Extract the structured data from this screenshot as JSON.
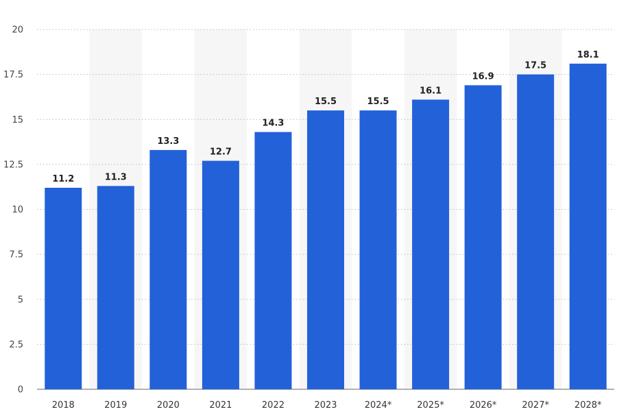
{
  "chart_data": {
    "type": "bar",
    "categories": [
      "2018",
      "2019",
      "2020",
      "2021",
      "2022",
      "2023",
      "2024*",
      "2025*",
      "2026*",
      "2027*",
      "2028*"
    ],
    "values": [
      11.2,
      11.3,
      13.3,
      12.7,
      14.3,
      15.5,
      15.5,
      16.1,
      16.9,
      17.5,
      18.1
    ],
    "value_labels": [
      "11.2",
      "11.3",
      "13.3",
      "12.7",
      "14.3",
      "15.5",
      "15.5",
      "16.1",
      "16.9",
      "17.5",
      "18.1"
    ],
    "yticks": [
      0,
      2.5,
      5,
      7.5,
      10,
      12.5,
      15,
      17.5,
      20
    ],
    "ytick_labels": [
      "0",
      "2.5",
      "5",
      "7.5",
      "10",
      "12.5",
      "15",
      "17.5",
      "20"
    ],
    "ylim": [
      0,
      20
    ],
    "title": "",
    "xlabel": "",
    "ylabel": "",
    "grid": true,
    "legend": "none",
    "colors": {
      "bar": "#2361d8",
      "band": "#f6f6f6",
      "grid": "#b9b9b9"
    }
  }
}
